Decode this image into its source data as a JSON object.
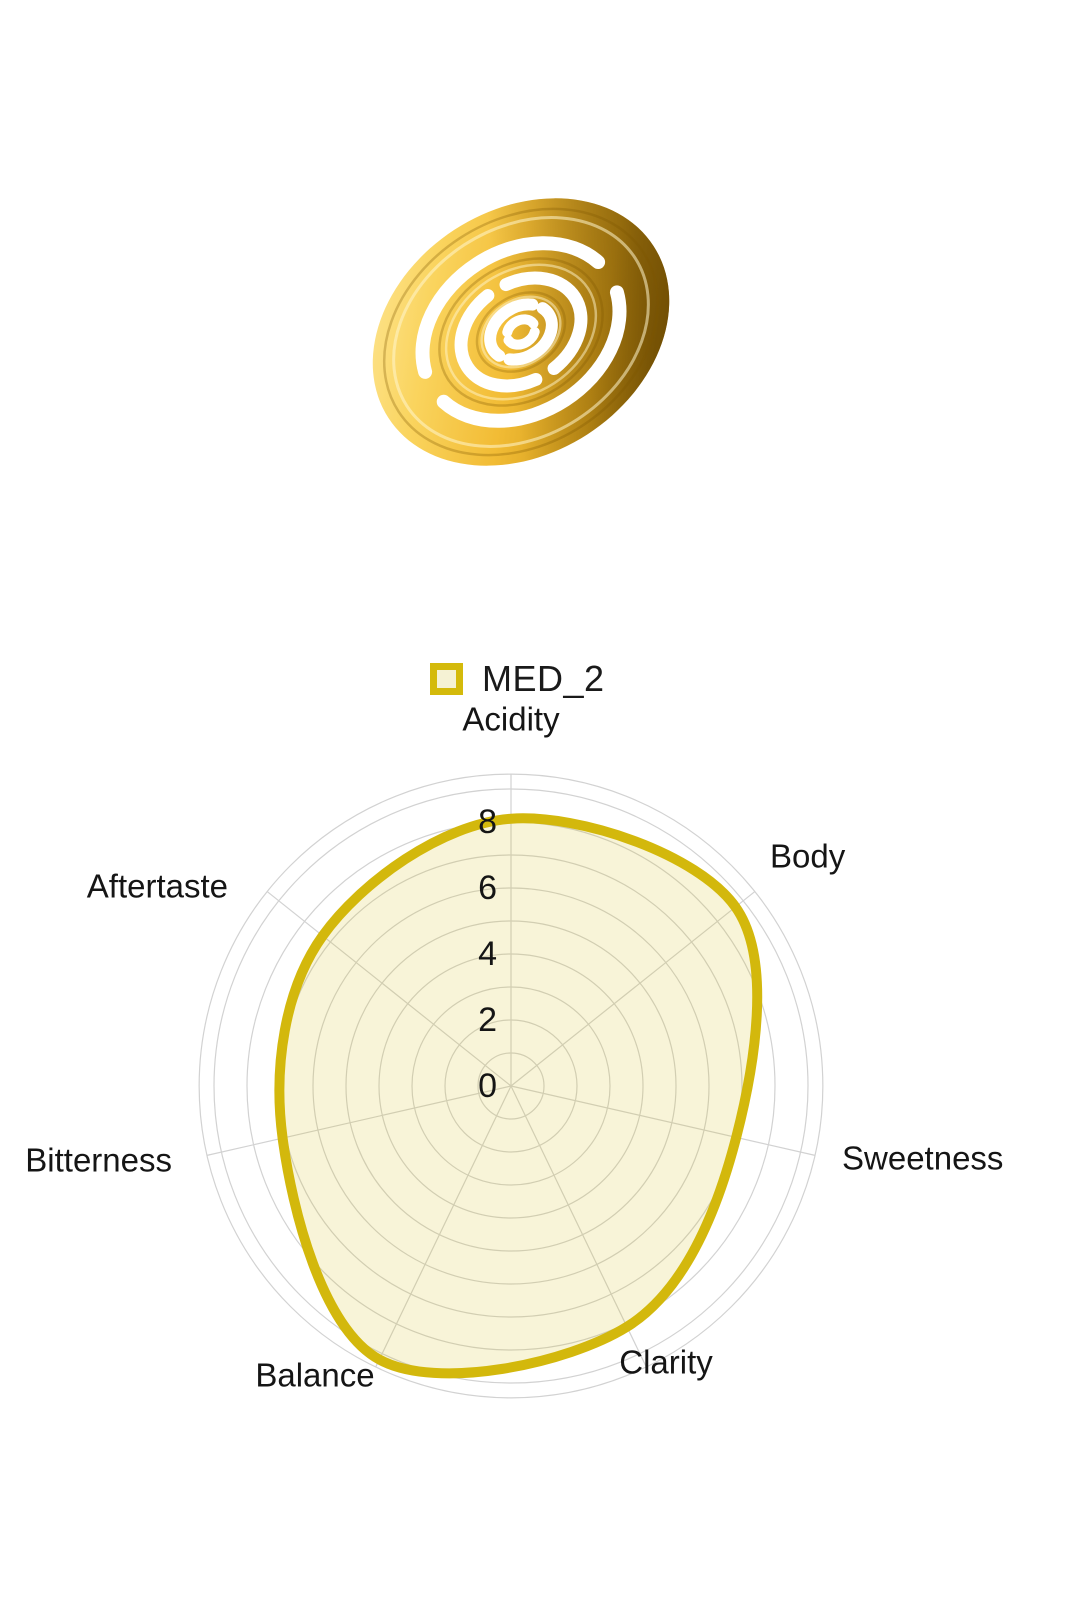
{
  "hero": {
    "description": "gold spiral dispersion disc",
    "gold_light": "#ffedaa",
    "gold_mid": "#f2bc35",
    "gold_dark": "#8a6205"
  },
  "legend": {
    "label": "MED_2",
    "swatch_border": "#d4ba0b",
    "swatch_fill": "#f5f2d4"
  },
  "chart_data": {
    "type": "radar",
    "title": "",
    "categories": [
      "Acidity",
      "Body",
      "Sweetness",
      "Clarity",
      "Balance",
      "Bitterness",
      "Aftertaste"
    ],
    "series": [
      {
        "name": "MED_2",
        "values": [
          8.1,
          8.7,
          7.0,
          8.1,
          9.2,
          7.1,
          7.3
        ]
      }
    ],
    "radial_ticks": [
      0,
      2,
      4,
      6,
      8
    ],
    "radial_range": [
      0,
      9.45
    ],
    "grid_step": 1,
    "grid": true,
    "grid_shape": "circular",
    "legend_position": "top-center",
    "line_color": "#d3b80c",
    "fill_color": "#d3b80c",
    "fill_opacity": 0.16,
    "grid_color": "#d2d2d2",
    "text_color": "#151515"
  }
}
